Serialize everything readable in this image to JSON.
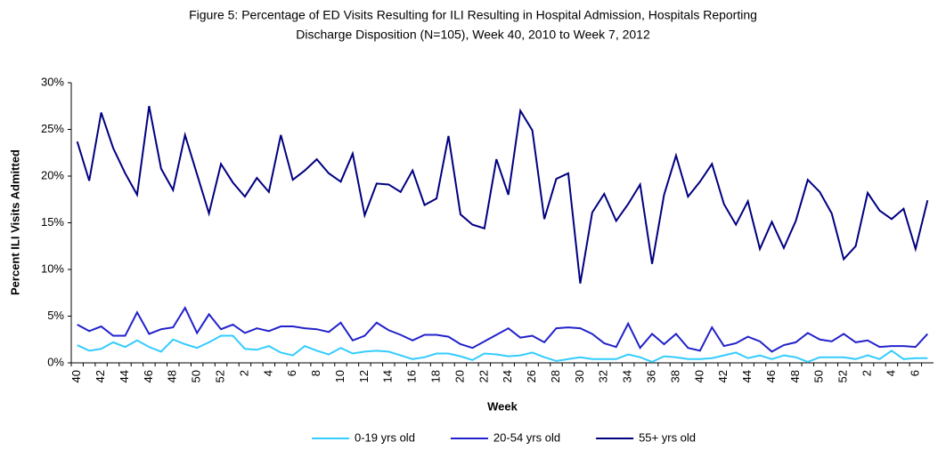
{
  "chart_data": {
    "type": "line",
    "title": [
      "Figure 5: Percentage of ED Visits Resulting for ILI Resulting in Hospital Admission, Hospitals Reporting",
      "Discharge Disposition (N=105), Week 40, 2010 to Week 7, 2012"
    ],
    "x_label": "Week",
    "y_label": "Percent ILI Visits Admitted",
    "categories": [
      "40",
      null,
      "42",
      null,
      "44",
      null,
      "46",
      null,
      "48",
      null,
      "50",
      null,
      "52",
      null,
      "2",
      null,
      "4",
      null,
      "6",
      null,
      "8",
      null,
      "10",
      null,
      "12",
      null,
      "14",
      null,
      "16",
      null,
      "18",
      null,
      "20",
      null,
      "22",
      null,
      "24",
      null,
      "26",
      null,
      "28",
      null,
      "30",
      null,
      "32",
      null,
      "34",
      null,
      "36",
      null,
      "38",
      null,
      "40",
      null,
      "42",
      null,
      "44",
      null,
      "46",
      null,
      "48",
      null,
      "50",
      null,
      "52",
      null,
      "2",
      null,
      "4",
      null,
      "6",
      null
    ],
    "series": [
      {
        "name": "0-19 yrs old",
        "color": "#33ccff",
        "values": [
          1.9,
          1.3,
          1.5,
          2.2,
          1.7,
          2.4,
          1.7,
          1.2,
          2.5,
          2,
          1.6,
          2.2,
          2.9,
          2.9,
          1.5,
          1.4,
          1.8,
          1.1,
          0.8,
          1.8,
          1.3,
          0.9,
          1.6,
          1,
          1.2,
          1.3,
          1.2,
          0.8,
          0.4,
          0.6,
          1,
          1,
          0.7,
          0.3,
          1,
          0.9,
          0.7,
          0.8,
          1.1,
          0.6,
          0.2,
          0.4,
          0.6,
          0.4,
          0.4,
          0.4,
          0.9,
          0.6,
          0.1,
          0.7,
          0.6,
          0.4,
          0.4,
          0.5,
          0.8,
          1.1,
          0.5,
          0.8,
          0.4,
          0.8,
          0.6,
          0.1,
          0.6,
          0.6,
          0.6,
          0.4,
          0.8,
          0.4,
          1.3,
          0.4,
          0.5,
          0.5
        ]
      },
      {
        "name": "20-54 yrs old",
        "color": "#2222cc",
        "values": [
          4.1,
          3.4,
          3.9,
          2.9,
          2.9,
          5.4,
          3.1,
          3.6,
          3.8,
          5.9,
          3.2,
          5.2,
          3.6,
          4.1,
          3.2,
          3.7,
          3.4,
          3.9,
          3.9,
          3.7,
          3.6,
          3.3,
          4.3,
          2.4,
          2.9,
          4.3,
          3.5,
          3,
          2.4,
          3,
          3,
          2.8,
          2,
          1.6,
          2.3,
          3,
          3.7,
          2.7,
          2.9,
          2.2,
          3.7,
          3.8,
          3.7,
          3.1,
          2.1,
          1.7,
          4.2,
          1.6,
          3.1,
          2,
          3.1,
          1.6,
          1.3,
          3.8,
          1.8,
          2.1,
          2.8,
          2.3,
          1.2,
          1.9,
          2.2,
          3.2,
          2.5,
          2.3,
          3.1,
          2.2,
          2.4,
          1.7,
          1.8,
          1.8,
          1.7,
          3.1
        ]
      },
      {
        "name": "55+ yrs old",
        "color": "#000080",
        "values": [
          23.7,
          19.5,
          26.8,
          23,
          20.3,
          18,
          27.5,
          20.8,
          18.5,
          24.4,
          20.2,
          16,
          21.3,
          19.3,
          17.8,
          19.8,
          18.3,
          24.4,
          19.6,
          20.6,
          21.8,
          20.3,
          19.4,
          22.4,
          15.8,
          19.2,
          19.1,
          18.3,
          20.6,
          16.9,
          17.6,
          24.3,
          15.9,
          14.8,
          14.4,
          21.8,
          18,
          27,
          24.9,
          15.4,
          19.7,
          20.3,
          8.5,
          16.1,
          18.1,
          15.2,
          17,
          19.1,
          10.6,
          18,
          22.2,
          17.8,
          19.4,
          21.3,
          17,
          14.8,
          17.3,
          12.2,
          15.1,
          12.3,
          15.2,
          19.6,
          18.3,
          16,
          11.1,
          12.5,
          18.2,
          16.3,
          15.4,
          16.5,
          12.2,
          17.4
        ]
      }
    ],
    "ylim": [
      0,
      30
    ],
    "yticks": [
      {
        "value": 0,
        "label": "0%"
      },
      {
        "value": 5,
        "label": "5%"
      },
      {
        "value": 10,
        "label": "10%"
      },
      {
        "value": 15,
        "label": "15%"
      },
      {
        "value": 20,
        "label": "20%"
      },
      {
        "value": 25,
        "label": "25%"
      },
      {
        "value": 30,
        "label": "30%"
      }
    ],
    "legend": "bottom"
  }
}
